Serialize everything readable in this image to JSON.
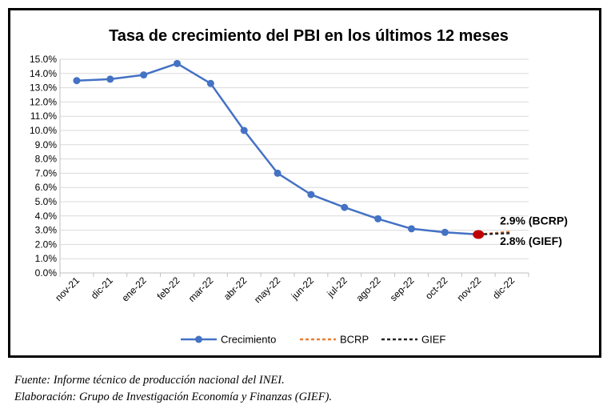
{
  "chart_data": {
    "type": "line",
    "title": "Tasa de crecimiento del PBI en los últimos 12 meses",
    "categories": [
      "nov-21",
      "dic-21",
      "ene-22",
      "feb-22",
      "mar-22",
      "abr-22",
      "may-22",
      "jun-22",
      "jul-22",
      "ago-22",
      "sep-22",
      "oct-22",
      "nov-22",
      "dic-22"
    ],
    "y_ticks": [
      "0.0%",
      "1.0%",
      "2.0%",
      "3.0%",
      "4.0%",
      "5.0%",
      "6.0%",
      "7.0%",
      "8.0%",
      "9.0%",
      "10.0%",
      "11.0%",
      "12.0%",
      "13.0%",
      "14.0%",
      "15.0%"
    ],
    "ylim": [
      0,
      15
    ],
    "grid": true,
    "legend_position": "bottom",
    "series": [
      {
        "name": "Crecimiento",
        "color": "#4472C4",
        "style": "solid-markers",
        "values": [
          13.5,
          13.6,
          13.9,
          14.7,
          13.3,
          10.0,
          7.0,
          5.5,
          4.6,
          3.8,
          3.1,
          2.85,
          2.7,
          null
        ]
      },
      {
        "name": "BCRP",
        "color": "#ED7D31",
        "style": "dashed",
        "values": [
          null,
          null,
          null,
          null,
          null,
          null,
          null,
          null,
          null,
          null,
          null,
          null,
          2.7,
          2.9
        ]
      },
      {
        "name": "GIEF",
        "color": "#262626",
        "style": "dashed",
        "values": [
          null,
          null,
          null,
          null,
          null,
          null,
          null,
          null,
          null,
          null,
          null,
          null,
          2.7,
          2.8
        ]
      }
    ],
    "highlight_point": {
      "category": "nov-22",
      "value": 2.7,
      "color": "#C00000"
    },
    "annotations": [
      {
        "text": "2.9% (BCRP)",
        "category": "dic-22",
        "value": 2.9
      },
      {
        "text": "2.8% (GIEF)",
        "category": "dic-22",
        "value": 2.8
      }
    ]
  },
  "notes": {
    "source": "Fuente: Informe técnico de producción nacional del INEI.",
    "credit": "Elaboración: Grupo de Investigación Economía y Finanzas (GIEF)."
  }
}
